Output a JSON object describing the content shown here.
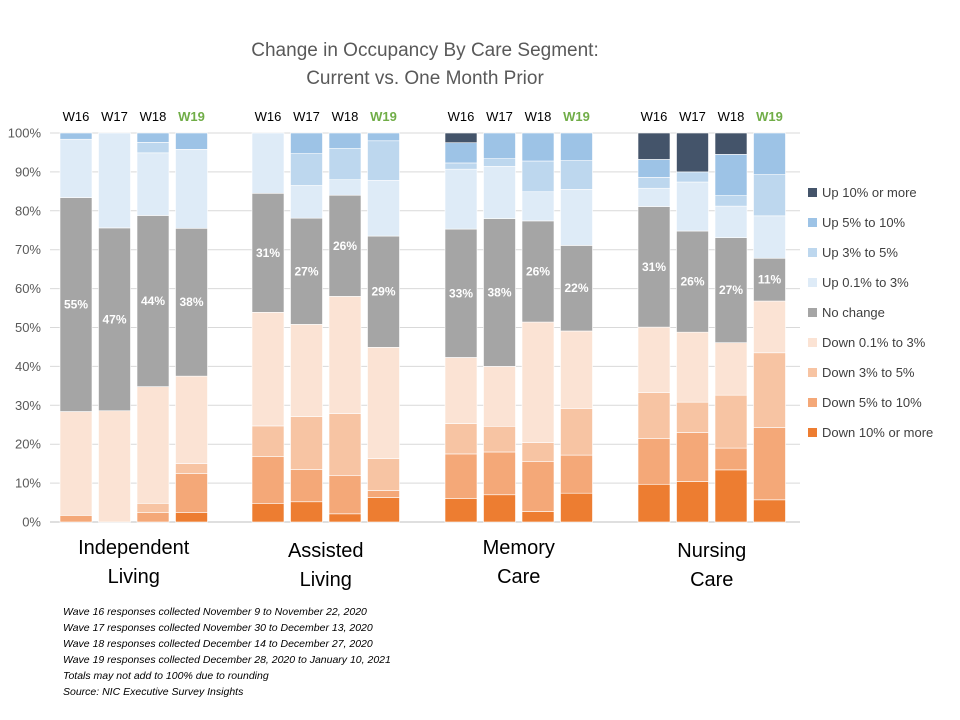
{
  "chart_data": {
    "type": "bar",
    "stacked": true,
    "title": [
      "Change in Occupancy By Care Segment:",
      "Current vs. One Month Prior"
    ],
    "ylim": [
      0,
      100
    ],
    "yticks": [
      "0%",
      "10%",
      "20%",
      "30%",
      "40%",
      "50%",
      "60%",
      "70%",
      "80%",
      "90%",
      "100%"
    ],
    "grid": true,
    "legend_position": "right",
    "weeks": [
      "W16",
      "W17",
      "W18",
      "W19"
    ],
    "highlight_week": "W19",
    "groups": [
      {
        "name": [
          "Independent",
          "Living"
        ],
        "bars": [
          [
            0,
            1.7,
            0,
            26.7,
            55,
            15,
            0,
            1.6
          ],
          [
            0,
            0,
            0,
            28.6,
            47,
            24.4,
            0,
            0
          ],
          [
            0,
            2.4,
            2.4,
            30,
            44,
            16.1,
            2.7,
            2.4
          ],
          [
            2.4,
            10.1,
            2.5,
            22.5,
            38,
            20.3,
            0,
            4.2
          ]
        ],
        "labels": [
          "55%",
          "47%",
          "44%",
          "38%"
        ]
      },
      {
        "name": [
          "Assisted",
          "Living"
        ],
        "bars": [
          [
            4.8,
            12,
            7.9,
            29.2,
            30.6,
            15.5,
            0,
            0
          ],
          [
            5.2,
            8.3,
            13.6,
            23.7,
            27.3,
            8.4,
            8.2,
            5.3
          ],
          [
            2.1,
            9.8,
            16,
            30.1,
            26,
            4,
            8,
            4
          ],
          [
            6.3,
            1.8,
            8.2,
            28.6,
            28.6,
            14.3,
            10.2,
            2
          ]
        ],
        "labels": [
          "31%",
          "27%",
          "26%",
          "29%"
        ]
      },
      {
        "name": [
          "Memory",
          "Care"
        ],
        "bars": [
          [
            6,
            11.5,
            7.8,
            17,
            33,
            15.4,
            1.6,
            5.2,
            2.5
          ],
          [
            7,
            11,
            6.6,
            15.4,
            38,
            13.4,
            2,
            6.6,
            0
          ],
          [
            2.7,
            12.8,
            4.9,
            31,
            26,
            7.5,
            7.9,
            7.2,
            0
          ],
          [
            7.4,
            9.8,
            12,
            19.9,
            22,
            14.4,
            7.4,
            7.1,
            0
          ]
        ],
        "labels": [
          "33%",
          "38%",
          "26%",
          "22%"
        ]
      },
      {
        "name": [
          "Nursing",
          "Care"
        ],
        "bars": [
          [
            9.7,
            11.8,
            11.8,
            16.8,
            31,
            4.7,
            2.8,
            4.6,
            6.8
          ],
          [
            10.4,
            12.6,
            7.8,
            18,
            26,
            12.6,
            2.6,
            0,
            10
          ],
          [
            13.4,
            5.6,
            13.6,
            13.5,
            27,
            8.1,
            2.7,
            10.6,
            5.5
          ],
          [
            5.7,
            18.6,
            19.2,
            13.3,
            11,
            10.9,
            10.6,
            10.7,
            0
          ]
        ],
        "labels": [
          "31%",
          "26%",
          "27%",
          "11%"
        ]
      }
    ],
    "series": [
      {
        "name": "Down 10% or more",
        "color": "#ED7D31"
      },
      {
        "name": "Down 5% to 10%",
        "color": "#F4A878"
      },
      {
        "name": "Down 3% to 5%",
        "color": "#F7C4A3"
      },
      {
        "name": "Down 0.1% to 3%",
        "color": "#FBE3D4"
      },
      {
        "name": "No change",
        "color": "#A5A5A5"
      },
      {
        "name": "Up 0.1% to 3%",
        "color": "#DEEBF7"
      },
      {
        "name": "Up 3% to 5%",
        "color": "#BDD7EE"
      },
      {
        "name": "Up 5% to 10%",
        "color": "#9DC3E6"
      },
      {
        "name": "Up 10% or more",
        "color": "#44546A"
      }
    ],
    "notes": [
      "Wave 16 responses collected November 9 to November 22, 2020",
      "Wave 17 responses collected November 30 to December 13, 2020",
      "Wave 18 responses collected December 14 to December 27, 2020",
      "Wave 19 responses collected December 28, 2020 to January 10, 2021",
      "Totals may not add to 100% due to rounding",
      "Source: NIC Executive Survey Insights"
    ]
  }
}
